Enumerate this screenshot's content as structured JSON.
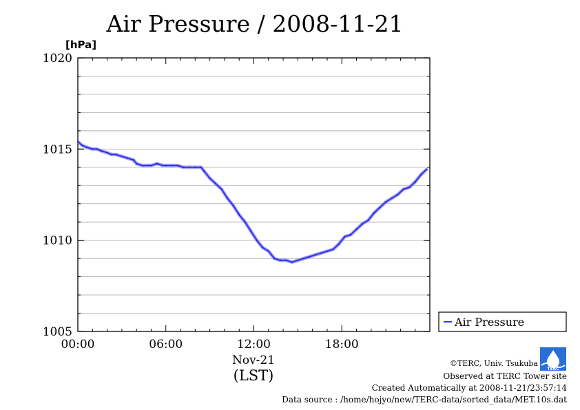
{
  "chart_data": {
    "type": "line",
    "title": "Air Pressure / 2008-11-21",
    "y_unit_label": "[hPa]",
    "ylim": [
      1005,
      1020
    ],
    "y_ticks": [
      1005,
      1010,
      1015,
      1020
    ],
    "y_minor_step": 1,
    "xlim": [
      0,
      24
    ],
    "x_ticks": [
      0,
      6,
      12,
      18
    ],
    "x_tick_labels": [
      "00:00",
      "06:00",
      "12:00",
      "18:00"
    ],
    "x_date_label": "Nov-21",
    "xlabel": "(LST)",
    "grid": true,
    "legend_position": "bottom-right-outside",
    "series": [
      {
        "name": "Air Pressure",
        "color": "#3333ee",
        "x": [
          0.0,
          0.3,
          0.6,
          1.0,
          1.3,
          1.6,
          2.0,
          2.3,
          2.6,
          3.0,
          3.4,
          3.8,
          4.0,
          4.4,
          4.8,
          5.0,
          5.4,
          5.8,
          6.0,
          6.4,
          6.8,
          7.2,
          7.6,
          8.0,
          8.4,
          8.6,
          9.0,
          9.4,
          9.8,
          10.2,
          10.6,
          11.0,
          11.4,
          11.8,
          12.2,
          12.6,
          13.0,
          13.4,
          13.8,
          14.2,
          14.6,
          15.0,
          15.4,
          15.8,
          16.2,
          16.6,
          17.0,
          17.4,
          17.8,
          18.2,
          18.6,
          19.0,
          19.4,
          19.8,
          20.2,
          20.6,
          21.0,
          21.4,
          21.8,
          22.2,
          22.6,
          23.0,
          23.4,
          23.8
        ],
        "values": [
          1015.4,
          1015.2,
          1015.1,
          1015.0,
          1015.0,
          1014.9,
          1014.8,
          1014.7,
          1014.7,
          1014.6,
          1014.5,
          1014.4,
          1014.2,
          1014.1,
          1014.1,
          1014.1,
          1014.2,
          1014.1,
          1014.1,
          1014.1,
          1014.1,
          1014.0,
          1014.0,
          1014.0,
          1014.0,
          1013.8,
          1013.4,
          1013.1,
          1012.8,
          1012.3,
          1011.9,
          1011.4,
          1011.0,
          1010.5,
          1010.0,
          1009.6,
          1009.4,
          1009.0,
          1008.9,
          1008.9,
          1008.8,
          1008.9,
          1009.0,
          1009.1,
          1009.2,
          1009.3,
          1009.4,
          1009.5,
          1009.8,
          1010.2,
          1010.3,
          1010.6,
          1010.9,
          1011.1,
          1011.5,
          1011.8,
          1012.1,
          1012.3,
          1012.5,
          1012.8,
          1012.9,
          1013.2,
          1013.6,
          1013.9
        ]
      }
    ]
  },
  "credits": {
    "copyright": "©TERC, Univ. Tsukuba",
    "observed": "Observed at TERC Tower site",
    "created": "Created Automatically at 2008-11-21/23:57:14",
    "source": "Data source : /home/hojyo/new/TERC-data/sorted_data/MET.10s.dat",
    "logo_text": "TERC"
  }
}
